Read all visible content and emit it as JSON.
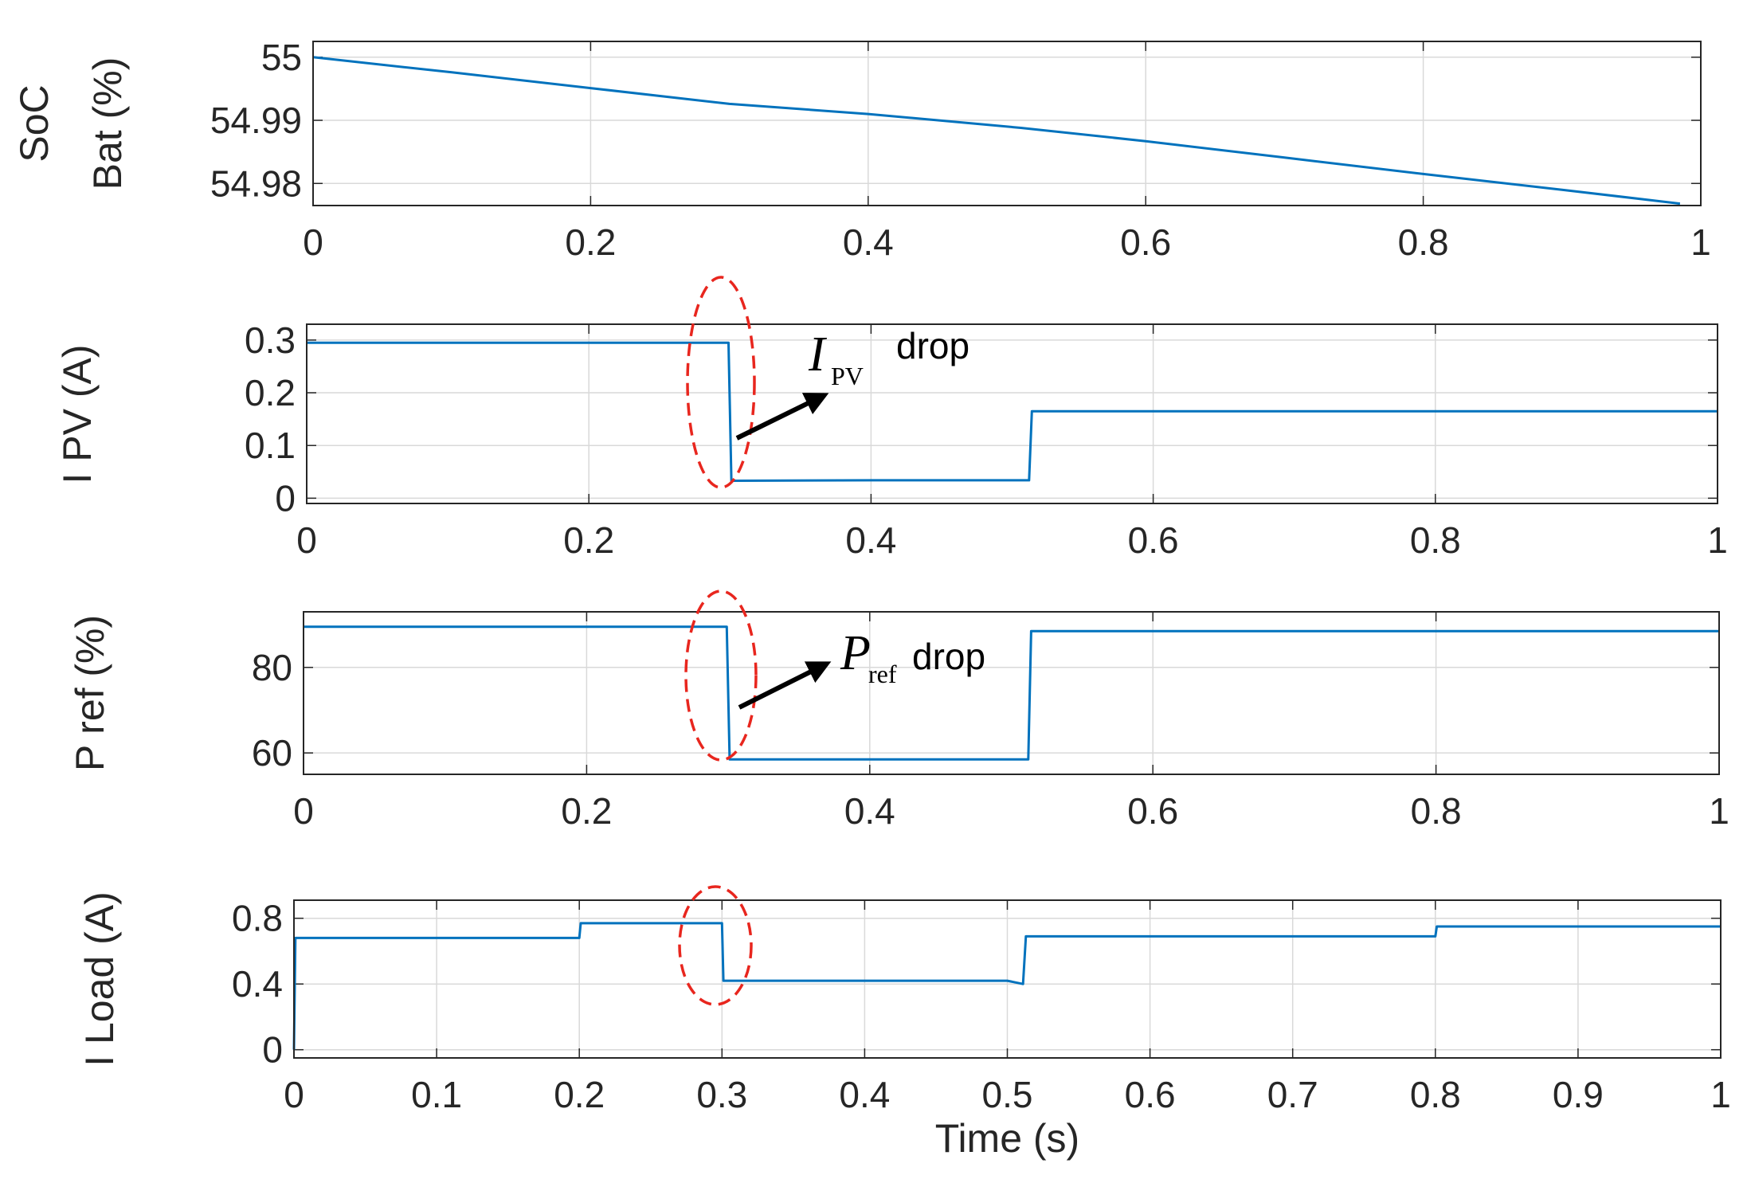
{
  "colors": {
    "line": "#0072BD",
    "grid": "#d9d9d9",
    "axis": "#262626",
    "ellipse": "#e8261e",
    "arrow": "#000000"
  },
  "chart_data": [
    {
      "type": "line",
      "ylabel_line1": "SoC",
      "ylabel_line2": "Bat (%)",
      "xlim": [
        0,
        1
      ],
      "ylim": [
        54.9765,
        55.0025
      ],
      "xticks": [
        0,
        0.2,
        0.4,
        0.6,
        0.8,
        1
      ],
      "xtick_labels": [
        "0",
        "0.2",
        "0.4",
        "0.6",
        "0.8",
        "1"
      ],
      "yticks": [
        55,
        54.99,
        54.98
      ],
      "ytick_labels": [
        "55",
        "54.99",
        "54.98"
      ],
      "grid": true,
      "series": [
        {
          "x": [
            0,
            0.1,
            0.2,
            0.3,
            0.4,
            0.51,
            0.6,
            0.7,
            0.8,
            0.9,
            0.985
          ],
          "y": [
            55.0,
            54.9976,
            54.9951,
            54.9926,
            54.991,
            54.9888,
            54.9867,
            54.9841,
            54.9815,
            54.979,
            54.9768
          ]
        }
      ]
    },
    {
      "type": "line",
      "ylabel": "I PV (A)",
      "xlim": [
        0,
        1
      ],
      "ylim": [
        -0.01,
        0.33
      ],
      "xticks": [
        0,
        0.2,
        0.4,
        0.6,
        0.8,
        1
      ],
      "xtick_labels": [
        "0",
        "0.2",
        "0.4",
        "0.6",
        "0.8",
        "1"
      ],
      "yticks": [
        0,
        0.1,
        0.2,
        0.3
      ],
      "ytick_labels": [
        "0",
        "0.1",
        "0.2",
        "0.3"
      ],
      "grid": true,
      "annotation": {
        "symbol": "I",
        "subscript": "PV",
        "text": "drop"
      },
      "series": [
        {
          "x": [
            0,
            0.1,
            0.2,
            0.299,
            0.301,
            0.4,
            0.512,
            0.514,
            0.6,
            0.8,
            1.0
          ],
          "y": [
            0.295,
            0.295,
            0.295,
            0.295,
            0.033,
            0.034,
            0.034,
            0.165,
            0.165,
            0.165,
            0.165
          ]
        }
      ]
    },
    {
      "type": "line",
      "ylabel": "P ref (%)",
      "xlim": [
        0,
        1
      ],
      "ylim": [
        55,
        93
      ],
      "xticks": [
        0,
        0.2,
        0.4,
        0.6,
        0.8,
        1
      ],
      "xtick_labels": [
        "0",
        "0.2",
        "0.4",
        "0.6",
        "0.8",
        "1"
      ],
      "yticks": [
        60,
        80
      ],
      "ytick_labels": [
        "60",
        "80"
      ],
      "grid": true,
      "annotation": {
        "symbol": "P",
        "subscript": "ref",
        "text": "drop"
      },
      "series": [
        {
          "x": [
            0,
            0.2,
            0.299,
            0.301,
            0.4,
            0.512,
            0.514,
            0.6,
            0.8,
            1.0
          ],
          "y": [
            89.5,
            89.5,
            89.5,
            58.5,
            58.5,
            58.5,
            88.5,
            88.5,
            88.5,
            88.5
          ]
        }
      ]
    },
    {
      "type": "line",
      "ylabel": "I Load (A)",
      "xlabel": "Time (s)",
      "xlim": [
        0,
        1
      ],
      "ylim": [
        -0.05,
        0.91
      ],
      "xticks": [
        0,
        0.1,
        0.2,
        0.3,
        0.4,
        0.5,
        0.6,
        0.7,
        0.8,
        0.9,
        1
      ],
      "xtick_labels": [
        "0",
        "0.1",
        "0.2",
        "0.3",
        "0.4",
        "0.5",
        "0.6",
        "0.7",
        "0.8",
        "0.9",
        "1"
      ],
      "yticks": [
        0,
        0.4,
        0.8
      ],
      "ytick_labels": [
        "0",
        "0.4",
        "0.8"
      ],
      "grid": true,
      "series": [
        {
          "x": [
            0,
            0.001,
            0.1,
            0.2,
            0.201,
            0.3,
            0.301,
            0.4,
            0.5,
            0.511,
            0.513,
            0.6,
            0.7,
            0.8,
            0.801,
            0.9,
            1.0
          ],
          "y": [
            0.0,
            0.68,
            0.68,
            0.68,
            0.77,
            0.77,
            0.42,
            0.42,
            0.42,
            0.4,
            0.69,
            0.69,
            0.69,
            0.69,
            0.75,
            0.75,
            0.75
          ]
        }
      ]
    }
  ]
}
